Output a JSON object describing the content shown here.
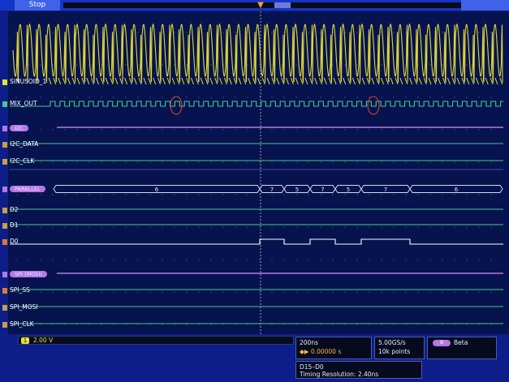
{
  "status": {
    "run_state": "Stop"
  },
  "channels": {
    "analog_1": "SINUSOID_1",
    "digital": [
      "MIX_OUT",
      "I2C_DATA",
      "I2C_CLK",
      "D2",
      "D1",
      "D0",
      "SPI_SS",
      "SPI_MOSI",
      "SPI_CLK"
    ]
  },
  "buses": {
    "b1_label": "I2C",
    "b2_label": "PARALLEL",
    "b3_label": "SPI (MOSI)",
    "parallel_values": [
      "6",
      "7",
      "5",
      "7",
      "5",
      "7",
      "6"
    ]
  },
  "readouts": {
    "ch1_scale": "2.00 V",
    "horizontal_scale": "200ns",
    "trigger_position": "0.00000 s",
    "sample_rate": "5.00GS/s",
    "record_length": "10k points",
    "bus_name": "Beta",
    "trigger_source": "D15–D0",
    "timing_resolution": "Timing Resolution: 2.40ns"
  },
  "colors": {
    "background": "#0d1e8a",
    "graticule": "#06134f",
    "analog": "#e8df35",
    "digital": "#49c98a",
    "digital_high": "#ffffff",
    "bus": "#b577e6",
    "trigger": "#ff9a2a"
  }
}
